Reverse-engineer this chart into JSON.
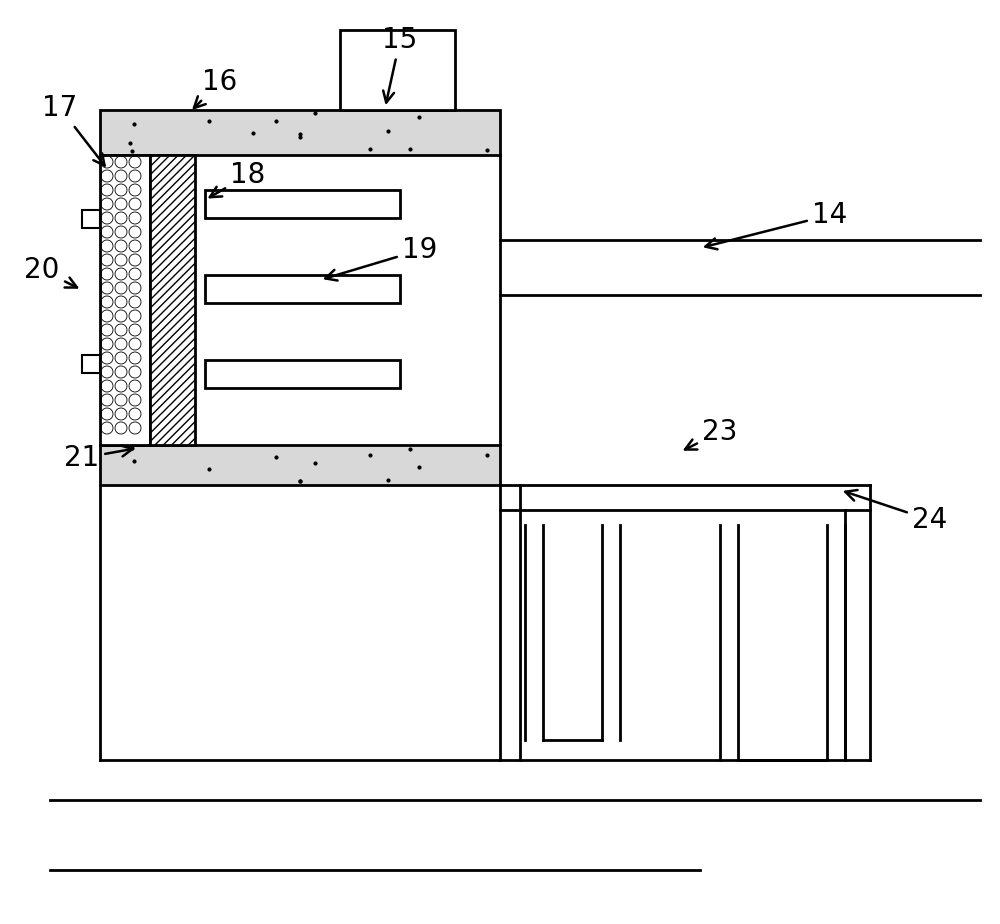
{
  "bg_color": "#ffffff",
  "line_color": "#000000",
  "lw": 2.0,
  "lw_thick": 2.5,
  "label_fs": 20
}
